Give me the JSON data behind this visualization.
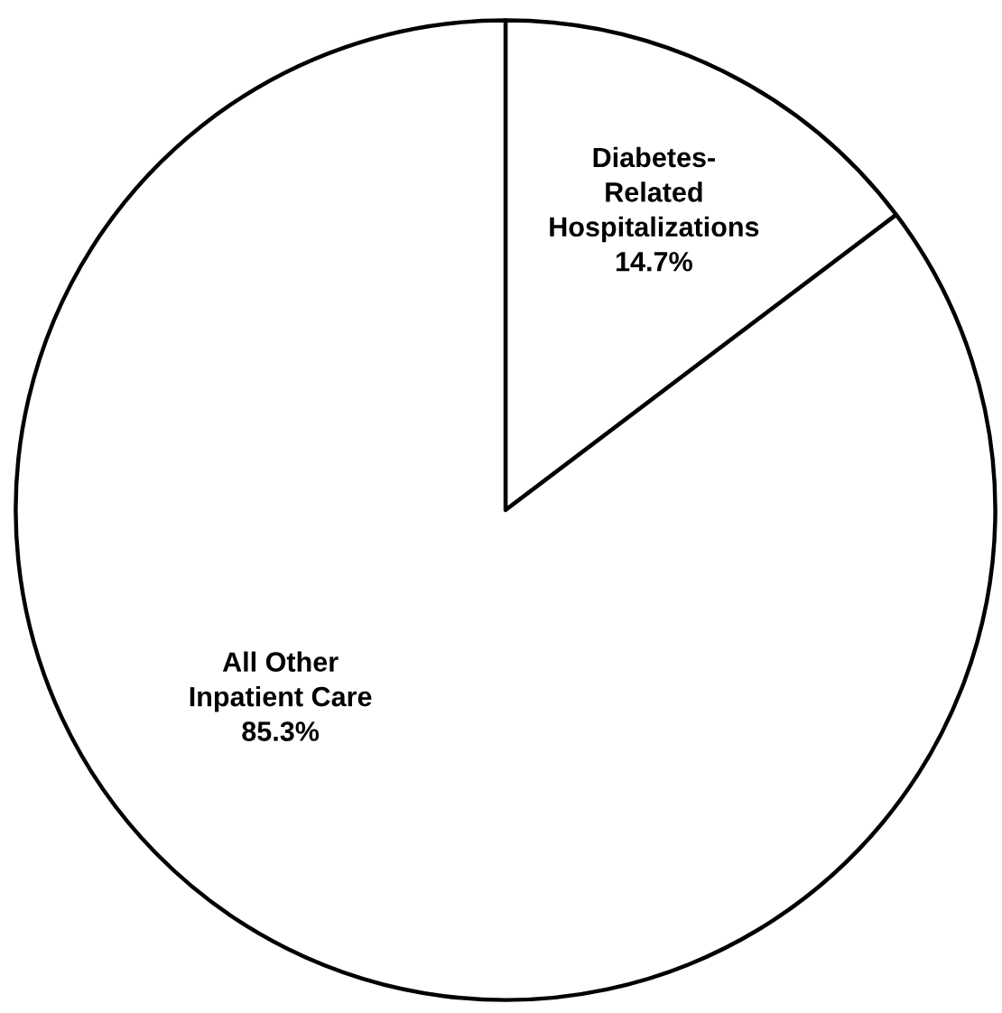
{
  "chart_data": {
    "type": "pie",
    "categories": [
      "Diabetes-Related Hospitalizations",
      "All Other Inpatient Care"
    ],
    "values": [
      14.7,
      85.3
    ],
    "colors": [
      "#ffffff",
      "#ffffff"
    ],
    "value_labels": [
      "14.7%",
      "85.3%"
    ]
  }
}
